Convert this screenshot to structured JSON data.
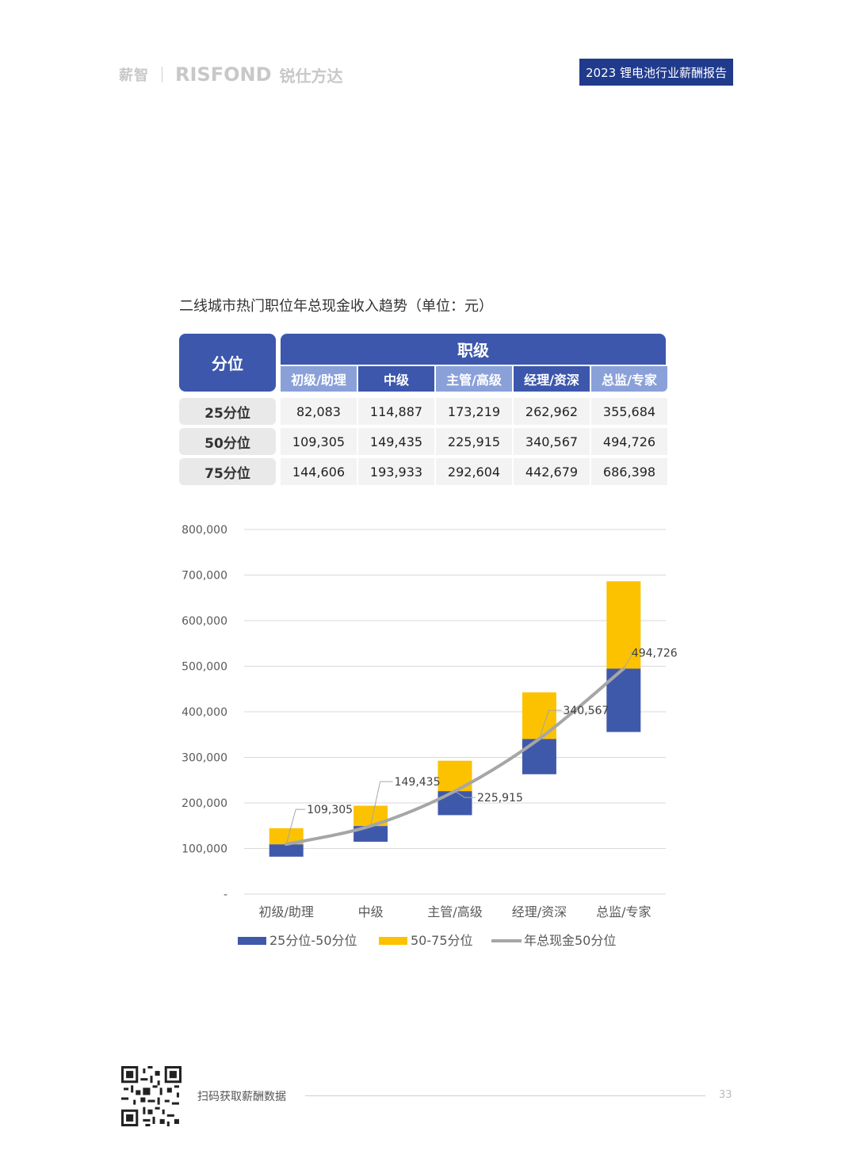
{
  "header": {
    "logo_xinzhi": "薪智",
    "logo_brand": "RISFOND",
    "logo_brand_cn": "锐仕方达",
    "report_tag": "2023 锂电池行业薪酬报告"
  },
  "section_title": "二线城市热门职位年总现金收入趋势（单位：元）",
  "table": {
    "corner_label": "分位",
    "group_label": "职级",
    "columns": [
      "初级/助理",
      "中级",
      "主管/高级",
      "经理/资深",
      "总监/专家"
    ],
    "rows": [
      {
        "label": "25分位",
        "values": [
          "82,083",
          "114,887",
          "173,219",
          "262,962",
          "355,684"
        ]
      },
      {
        "label": "50分位",
        "values": [
          "109,305",
          "149,435",
          "225,915",
          "340,567",
          "494,726"
        ]
      },
      {
        "label": "75分位",
        "values": [
          "144,606",
          "193,933",
          "292,604",
          "442,679",
          "686,398"
        ]
      }
    ]
  },
  "chart_data": {
    "type": "bar",
    "stacked": true,
    "categories": [
      "初级/助理",
      "中级",
      "主管/高级",
      "经理/资深",
      "总监/专家"
    ],
    "series": [
      {
        "name": "25分位-50分位",
        "color": "#3f59aa",
        "base": [
          82083,
          114887,
          173219,
          262962,
          355684
        ],
        "top": [
          109305,
          149435,
          225915,
          340567,
          494726
        ]
      },
      {
        "name": "50-75分位",
        "color": "#fcc200",
        "base": [
          109305,
          149435,
          225915,
          340567,
          494726
        ],
        "top": [
          144606,
          193933,
          292604,
          442679,
          686398
        ]
      },
      {
        "name": "年总现金50分位",
        "type": "line",
        "color": "#a6a6a6",
        "values": [
          109305,
          149435,
          225915,
          340567,
          494726
        ]
      }
    ],
    "data_labels": [
      "109,305",
      "149,435",
      "225,915",
      "340,567",
      "494,726"
    ],
    "ylim": [
      0,
      800000
    ],
    "yticks": [
      "-",
      "100,000",
      "200,000",
      "300,000",
      "400,000",
      "500,000",
      "600,000",
      "700,000",
      "800,000"
    ],
    "grid": true,
    "legend": "bottom"
  },
  "footer": {
    "scan_text": "扫码获取薪酬数据",
    "page_number": "33"
  }
}
